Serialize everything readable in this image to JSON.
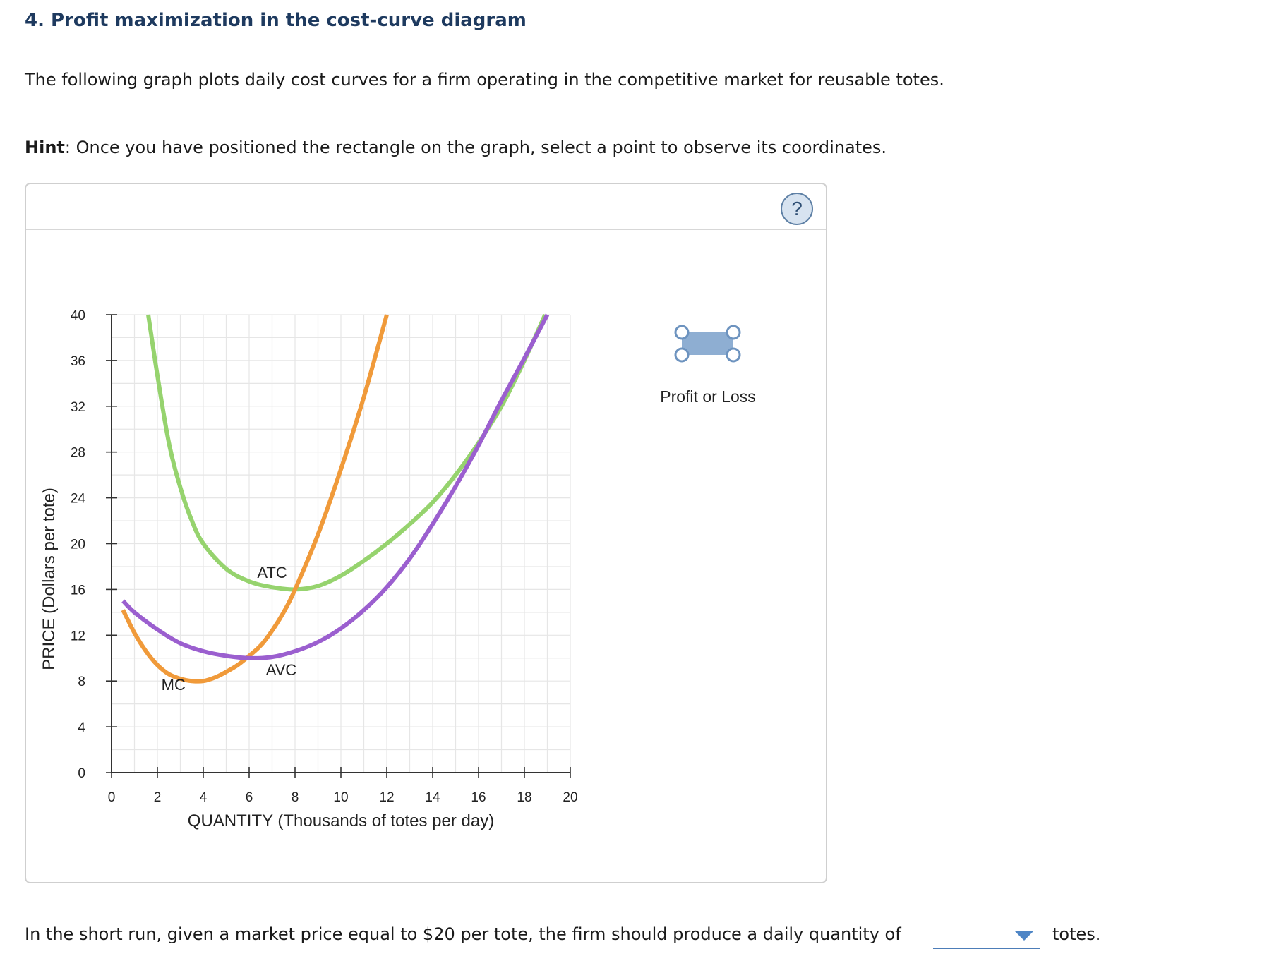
{
  "header": {
    "title": "4. Profit maximization in the cost-curve diagram",
    "intro": "The following graph plots daily cost curves for a firm operating in the competitive market for reusable totes.",
    "hint_label": "Hint",
    "hint_text": ": Once you have positioned the rectangle on the graph, select a point to observe its coordinates."
  },
  "panel": {
    "help_glyph": "?",
    "tool_label": "Profit or Loss"
  },
  "colors": {
    "atc": "#96d36e",
    "mc": "#f09a3a",
    "avc": "#9b5fcf",
    "tool_fill": "#8eaed2",
    "tool_stroke": "#6d93bf",
    "grid": "#e6e6e6",
    "axis": "#333333"
  },
  "chart_data": {
    "type": "line",
    "xlabel": "QUANTITY (Thousands of totes per day)",
    "ylabel": "PRICE (Dollars per tote)",
    "xlim": [
      0,
      20
    ],
    "ylim": [
      0,
      40
    ],
    "x_ticks": [
      0,
      2,
      4,
      6,
      8,
      10,
      12,
      14,
      16,
      18,
      20
    ],
    "y_ticks": [
      0,
      4,
      8,
      12,
      16,
      20,
      24,
      28,
      32,
      36,
      40
    ],
    "grid": true,
    "series": [
      {
        "name": "ATC",
        "color_key": "atc",
        "x": [
          1.6,
          2.0,
          2.5,
          3.0,
          3.5,
          4.0,
          5.0,
          6.0,
          7.0,
          8.0,
          9.0,
          10.0,
          11.0,
          12.0,
          13.0,
          14.0,
          15.0,
          16.0,
          17.0,
          18.0,
          18.9
        ],
        "y": [
          40.0,
          34.7,
          28.8,
          24.9,
          22.0,
          20.0,
          17.8,
          16.7,
          16.2,
          16.0,
          16.3,
          17.2,
          18.5,
          20.0,
          21.7,
          23.6,
          26.0,
          28.8,
          32.0,
          36.0,
          40.0
        ]
      },
      {
        "name": "MC",
        "color_key": "mc",
        "x": [
          0.5,
          1.0,
          1.5,
          2.0,
          2.5,
          3.0,
          3.5,
          4.0,
          4.5,
          5.0,
          5.5,
          6.0,
          6.5,
          7.0,
          7.5,
          8.0,
          9.0,
          10.0,
          11.0,
          12.0
        ],
        "y": [
          14.2,
          12.2,
          10.6,
          9.4,
          8.6,
          8.2,
          8.0,
          8.0,
          8.3,
          8.8,
          9.4,
          10.2,
          11.1,
          12.4,
          14.0,
          16.0,
          20.8,
          26.5,
          32.8,
          40.0
        ]
      },
      {
        "name": "AVC",
        "color_key": "avc",
        "x": [
          0.5,
          1.0,
          2.0,
          3.0,
          4.0,
          5.0,
          6.0,
          7.0,
          8.0,
          9.0,
          10.0,
          11.0,
          12.0,
          13.0,
          14.0,
          15.0,
          16.0,
          17.0,
          18.0,
          19.0
        ],
        "y": [
          15.0,
          14.0,
          12.5,
          11.3,
          10.6,
          10.2,
          10.0,
          10.1,
          10.6,
          11.4,
          12.6,
          14.2,
          16.2,
          18.7,
          21.7,
          25.0,
          28.6,
          32.5,
          36.2,
          40.0
        ]
      }
    ],
    "annotations": [
      {
        "text": "ATC",
        "x": 7.0,
        "y": 17.0
      },
      {
        "text": "MC",
        "x": 2.7,
        "y": 7.2
      },
      {
        "text": "AVC",
        "x": 7.4,
        "y": 8.5
      }
    ]
  },
  "question": {
    "text": "In the short run, given a market price equal to $20 per tote, the firm should produce a daily quantity of",
    "selected_value": "",
    "unit": "totes."
  }
}
